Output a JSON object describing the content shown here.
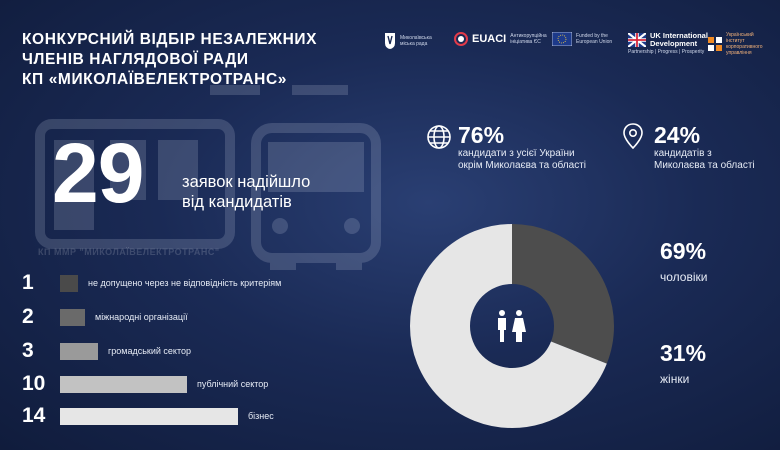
{
  "title": {
    "line1": "КОНКУРСНИЙ ВІДБІР НЕЗАЛЕЖНИХ",
    "line2": "ЧЛЕНІВ НАГЛЯДОВОЇ РАДИ",
    "line3": "КП «МИКОЛАЇВЕЛЕКТРОТРАНС»"
  },
  "logos": {
    "city_council": "Миколаївська міська рада",
    "euaci": "EUACI",
    "euaci_sub": "Антикорупційна ініціатива ЄС",
    "eu_funded": "Funded by the European Union",
    "uk_line1": "UK International",
    "uk_line2": "Development",
    "uk_sub": "Partnership | Progress | Prosperity",
    "institute": "Український інститут корпоративного управління"
  },
  "background_caption": "КП ММР \"МИКОЛАЇВЕЛЕКТРОТРАНС\"",
  "total": {
    "value": "29",
    "text_line1": "заявок надійшло",
    "text_line2": "від кандидатів"
  },
  "breakdown": [
    {
      "count": "1",
      "label": "не допущено через не відповідність критеріям",
      "value": 1,
      "color": "#4a4a4a"
    },
    {
      "count": "2",
      "label": "міжнародні організації",
      "value": 2,
      "color": "#6a6a6a"
    },
    {
      "count": "3",
      "label": "громадський сектор",
      "value": 3,
      "color": "#9a9a9a"
    },
    {
      "count": "10",
      "label": "публічний сектор",
      "value": 10,
      "color": "#c2c2c2"
    },
    {
      "count": "14",
      "label": "бізнес",
      "value": 14,
      "color": "#e6e6e6"
    }
  ],
  "geography": {
    "ukraine": {
      "pct": "76%",
      "desc_line1": "кандидати з усієї України",
      "desc_line2": "окрім Миколаєва та області"
    },
    "mykolaiv": {
      "pct": "24%",
      "desc_line1": "кандидатів з",
      "desc_line2": "Миколаєва та області"
    }
  },
  "gender": {
    "men": {
      "pct": "69%",
      "label": "чоловіки",
      "value": 69,
      "color": "#e6e6e6"
    },
    "women": {
      "pct": "31%",
      "label": "жінки",
      "value": 31,
      "color": "#4d4d4d"
    }
  },
  "icons": [
    "globe-icon",
    "location-pin-icon",
    "people-icon",
    "bus-icon"
  ]
}
